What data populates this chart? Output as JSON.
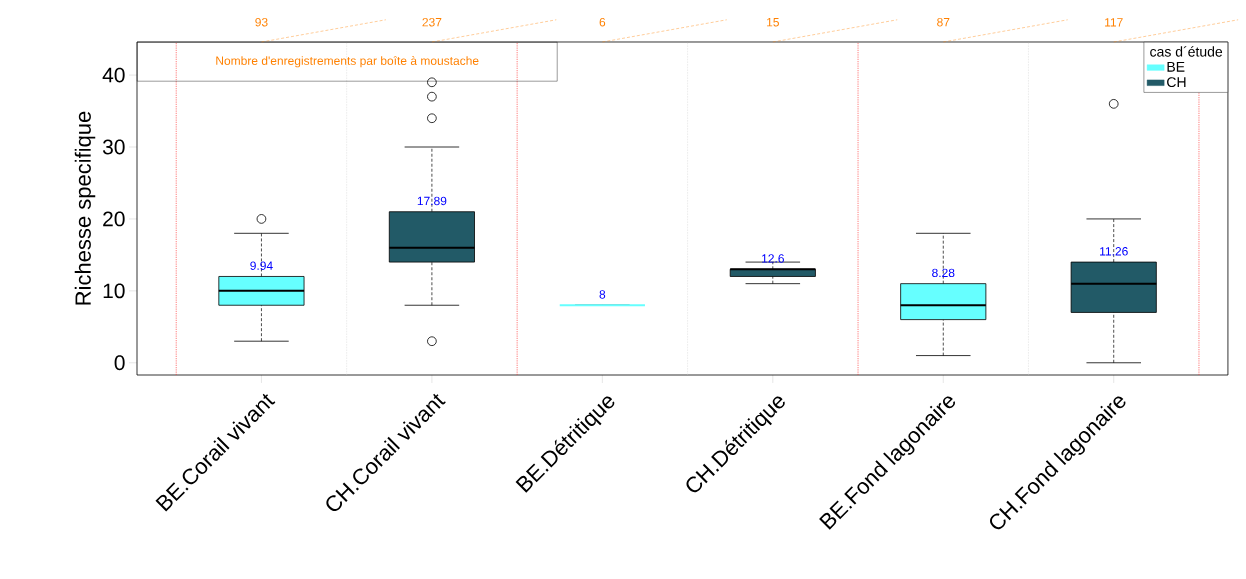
{
  "chart_data": {
    "type": "box",
    "ylabel": "Richesse specifique",
    "legend_title": "cas d´étude",
    "categories": [
      "BE.Corail vivant",
      "CH.Corail vivant",
      "BE.Détritique",
      "CH.Détritique",
      "BE.Fond lagonaire",
      "CH.Fond lagonaire"
    ],
    "series": [
      {
        "name": "BE",
        "color": "#66ffff",
        "boxes": [
          {
            "low": 3,
            "q1": 8,
            "median": 10,
            "q3": 12,
            "high": 18,
            "outliers": [
              20
            ]
          },
          null,
          {
            "low": 8,
            "q1": 8,
            "median": 8,
            "q3": 8,
            "high": 8
          },
          null,
          {
            "low": 1,
            "q1": 6,
            "median": 8,
            "q3": 11,
            "high": 18
          },
          null
        ]
      },
      {
        "name": "CH",
        "color": "#225a67",
        "boxes": [
          null,
          {
            "low": 8,
            "q1": 14,
            "median": 16,
            "q3": 21,
            "high": 30,
            "outliers": [
              3,
              34,
              37,
              39
            ]
          },
          null,
          {
            "low": 11,
            "q1": 12,
            "median": 13,
            "q3": 13,
            "high": 14
          },
          null,
          {
            "low": 0,
            "q1": 7,
            "median": 11,
            "q3": 14,
            "high": 20,
            "outliers": [
              36
            ]
          }
        ]
      }
    ],
    "ylim": [
      -1.7,
      44.6
    ],
    "yticks": [
      0,
      10,
      20,
      30,
      40
    ],
    "annotations": [
      "Nombre d'enregistrements par boîte à moustache",
      "93",
      "237",
      "6",
      "15",
      "87",
      "117",
      "9.94",
      "17.89",
      "8",
      "12.6",
      "8.28",
      "11.26"
    ],
    "legend": "top right",
    "marker": "circle"
  }
}
